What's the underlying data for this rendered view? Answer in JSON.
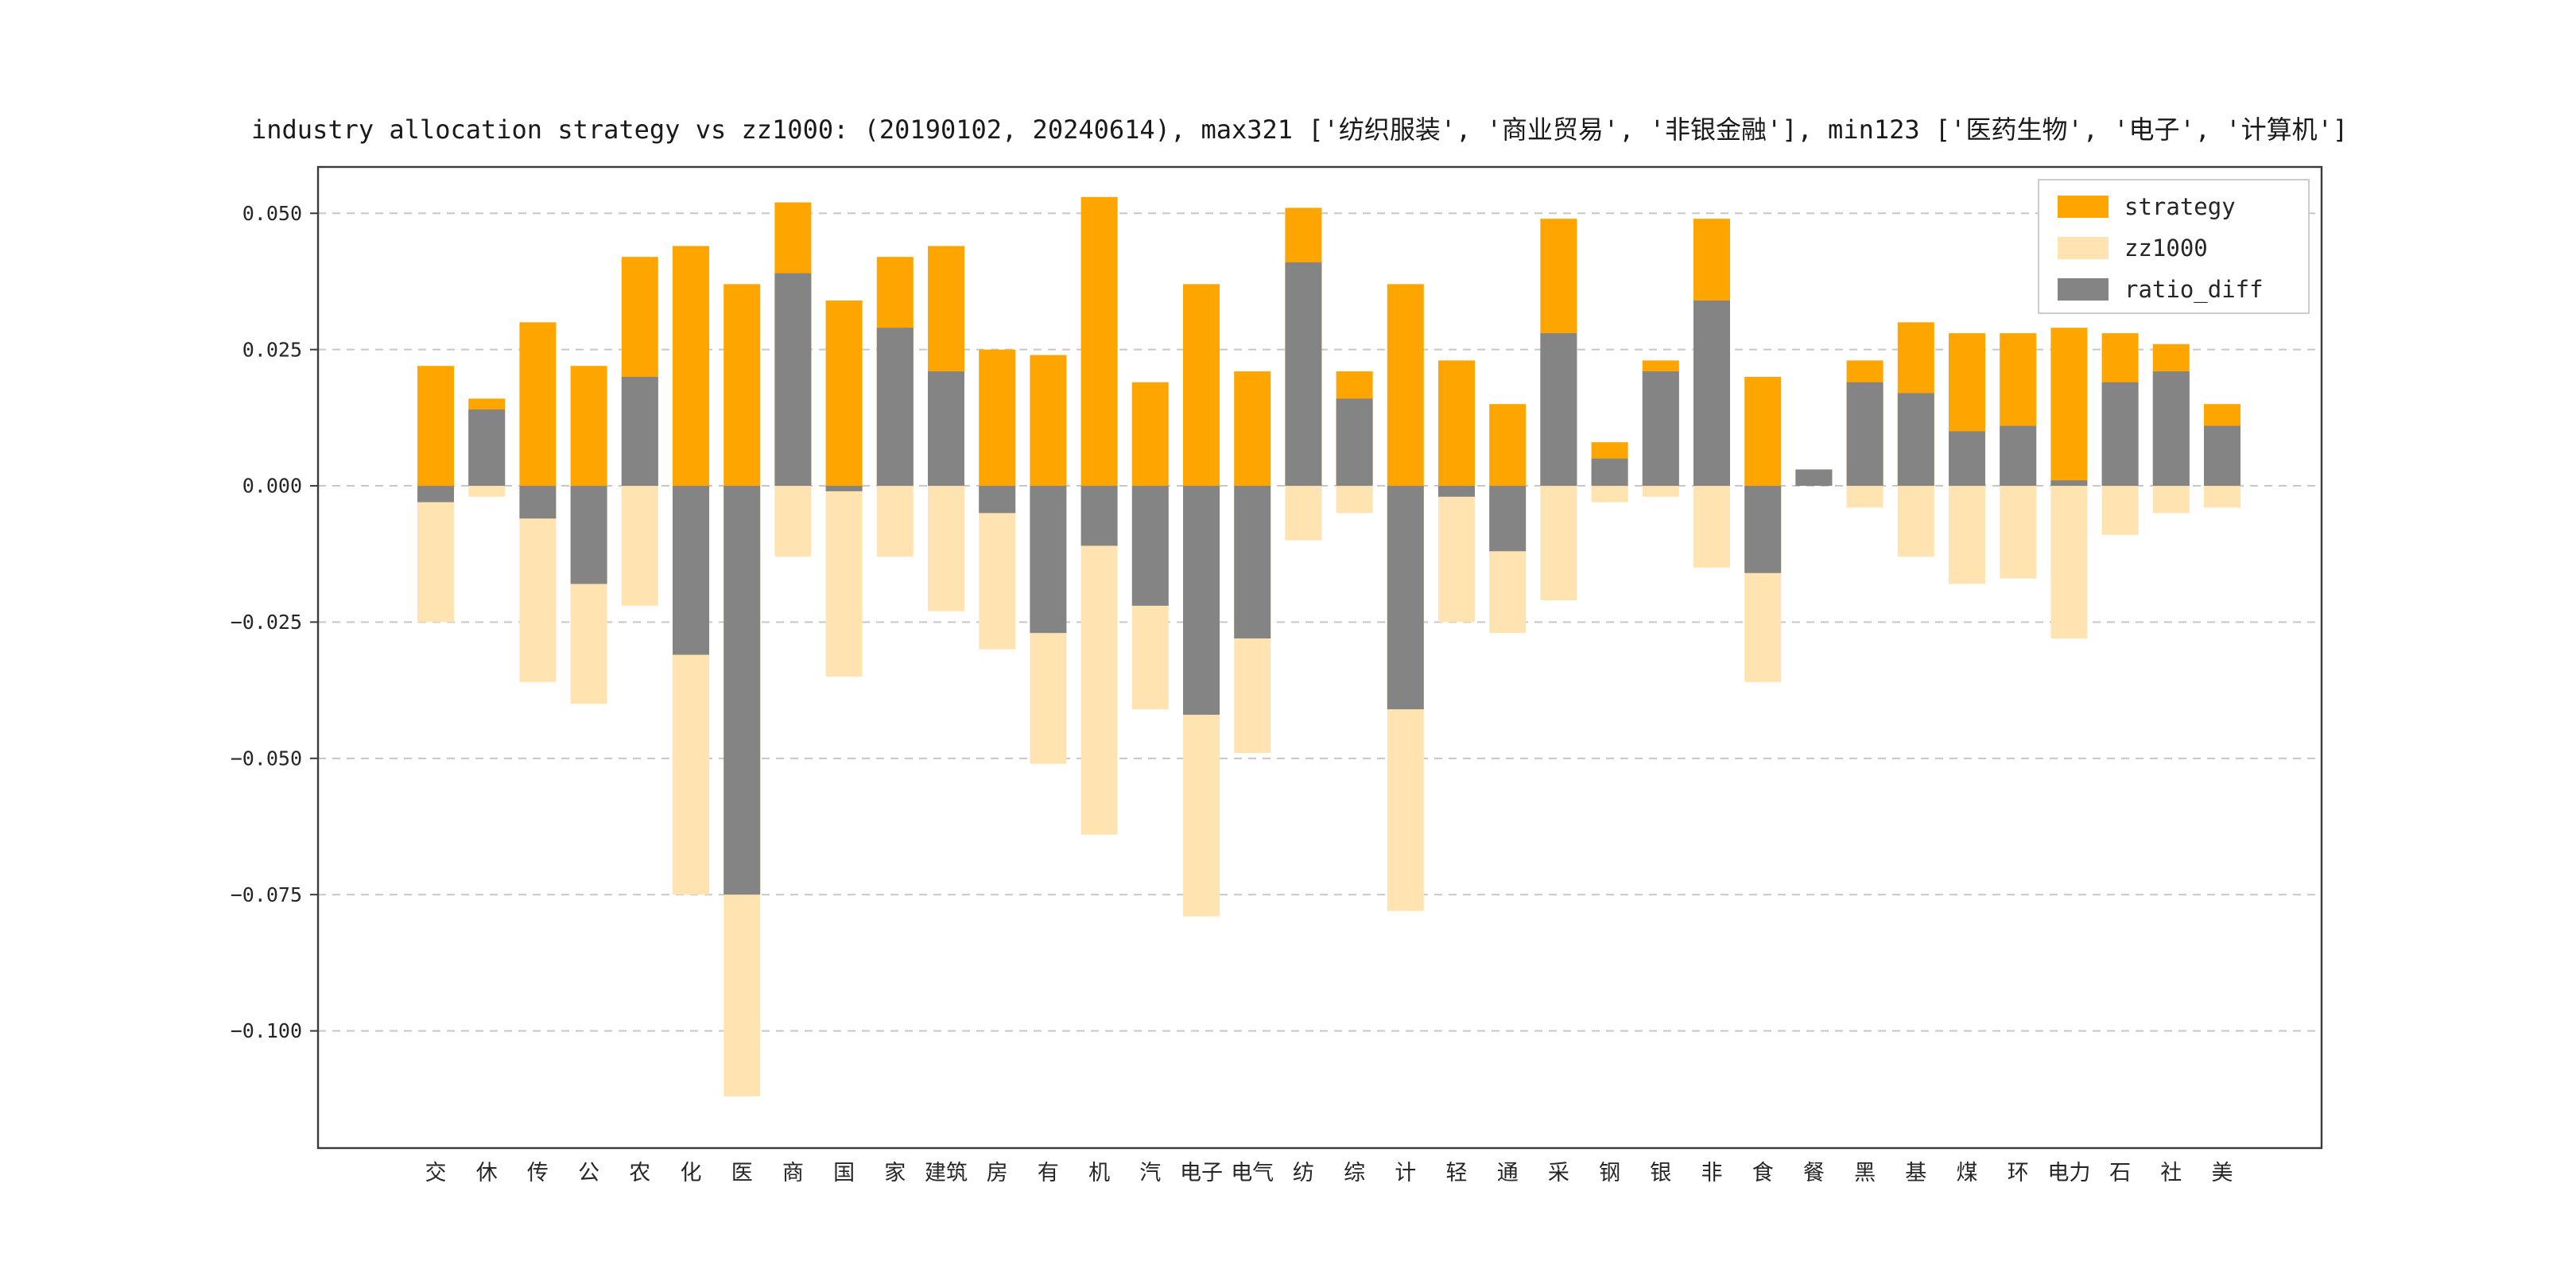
{
  "figure": {
    "title": "industry allocation strategy vs zz1000: (20190102, 20240614), max321 ['纺织服装', '商业贸易', '非银金融'], min123 ['医药生物', '电子', '计算机']"
  },
  "chart_data": {
    "type": "bar",
    "title": "industry allocation strategy vs zz1000: (20190102, 20240614), max321 ['纺织服装', '商业贸易', '非银金融'], min123 ['医药生物', '电子', '计算机']",
    "xlabel": "",
    "ylabel": "",
    "categories": [
      "交",
      "休",
      "传",
      "公",
      "农",
      "化",
      "医",
      "商",
      "国",
      "家",
      "建筑",
      "房",
      "有",
      "机",
      "汽",
      "电子",
      "电气",
      "纺",
      "综",
      "计",
      "轻",
      "通",
      "采",
      "钢",
      "银",
      "非",
      "食",
      "餐",
      "黑",
      "基",
      "煤",
      "环",
      "电力",
      "石",
      "社",
      "美"
    ],
    "series": [
      {
        "name": "strategy",
        "color": "#FFA500",
        "values": [
          0.022,
          0.016,
          0.03,
          0.022,
          0.042,
          0.044,
          0.037,
          0.052,
          0.034,
          0.042,
          0.044,
          0.025,
          0.024,
          0.053,
          0.019,
          0.037,
          0.021,
          0.051,
          0.021,
          0.037,
          0.023,
          0.015,
          0.049,
          0.008,
          0.023,
          0.049,
          0.02,
          0.003,
          0.023,
          0.03,
          0.028,
          0.028,
          0.029,
          0.028,
          0.026,
          0.015
        ]
      },
      {
        "name": "zz1000",
        "color": "#FFE4B2",
        "values": [
          -0.025,
          -0.002,
          -0.036,
          -0.04,
          -0.022,
          -0.075,
          -0.112,
          -0.013,
          -0.035,
          -0.013,
          -0.023,
          -0.03,
          -0.051,
          -0.064,
          -0.041,
          -0.079,
          -0.049,
          -0.01,
          -0.005,
          -0.078,
          -0.025,
          -0.027,
          -0.021,
          -0.003,
          -0.002,
          -0.015,
          -0.036,
          0.0,
          -0.004,
          -0.013,
          -0.018,
          -0.017,
          -0.028,
          -0.009,
          -0.005,
          -0.004
        ]
      },
      {
        "name": "ratio_diff",
        "color": "#848484",
        "values": [
          -0.003,
          0.014,
          -0.006,
          -0.018,
          0.02,
          -0.031,
          -0.075,
          0.039,
          -0.001,
          0.029,
          0.021,
          -0.005,
          -0.027,
          -0.011,
          -0.022,
          -0.042,
          -0.028,
          0.041,
          0.016,
          -0.041,
          -0.002,
          -0.012,
          0.028,
          0.005,
          0.021,
          0.034,
          -0.016,
          0.003,
          0.019,
          0.017,
          0.01,
          0.011,
          0.001,
          0.019,
          0.021,
          0.011
        ]
      }
    ],
    "yticks": [
      0.05,
      0.025,
      0.0,
      -0.025,
      -0.05,
      -0.075,
      -0.1
    ],
    "ylim": [
      -0.1215,
      0.0585
    ],
    "grid": "dashed-horizontal",
    "legend_position": "upper-right",
    "legend_labels": [
      "strategy",
      "zz1000",
      "ratio_diff"
    ],
    "note": "zz1000 weights are plotted downward as negative bars; ratio_diff = strategy - zz1000 and is drawn over the base of the strategy/zz1000 bars"
  },
  "colors": {
    "grid": "#c7c7c7",
    "frame": "#3a3a3a",
    "text": "#262626",
    "legend_border": "#cccccc"
  }
}
